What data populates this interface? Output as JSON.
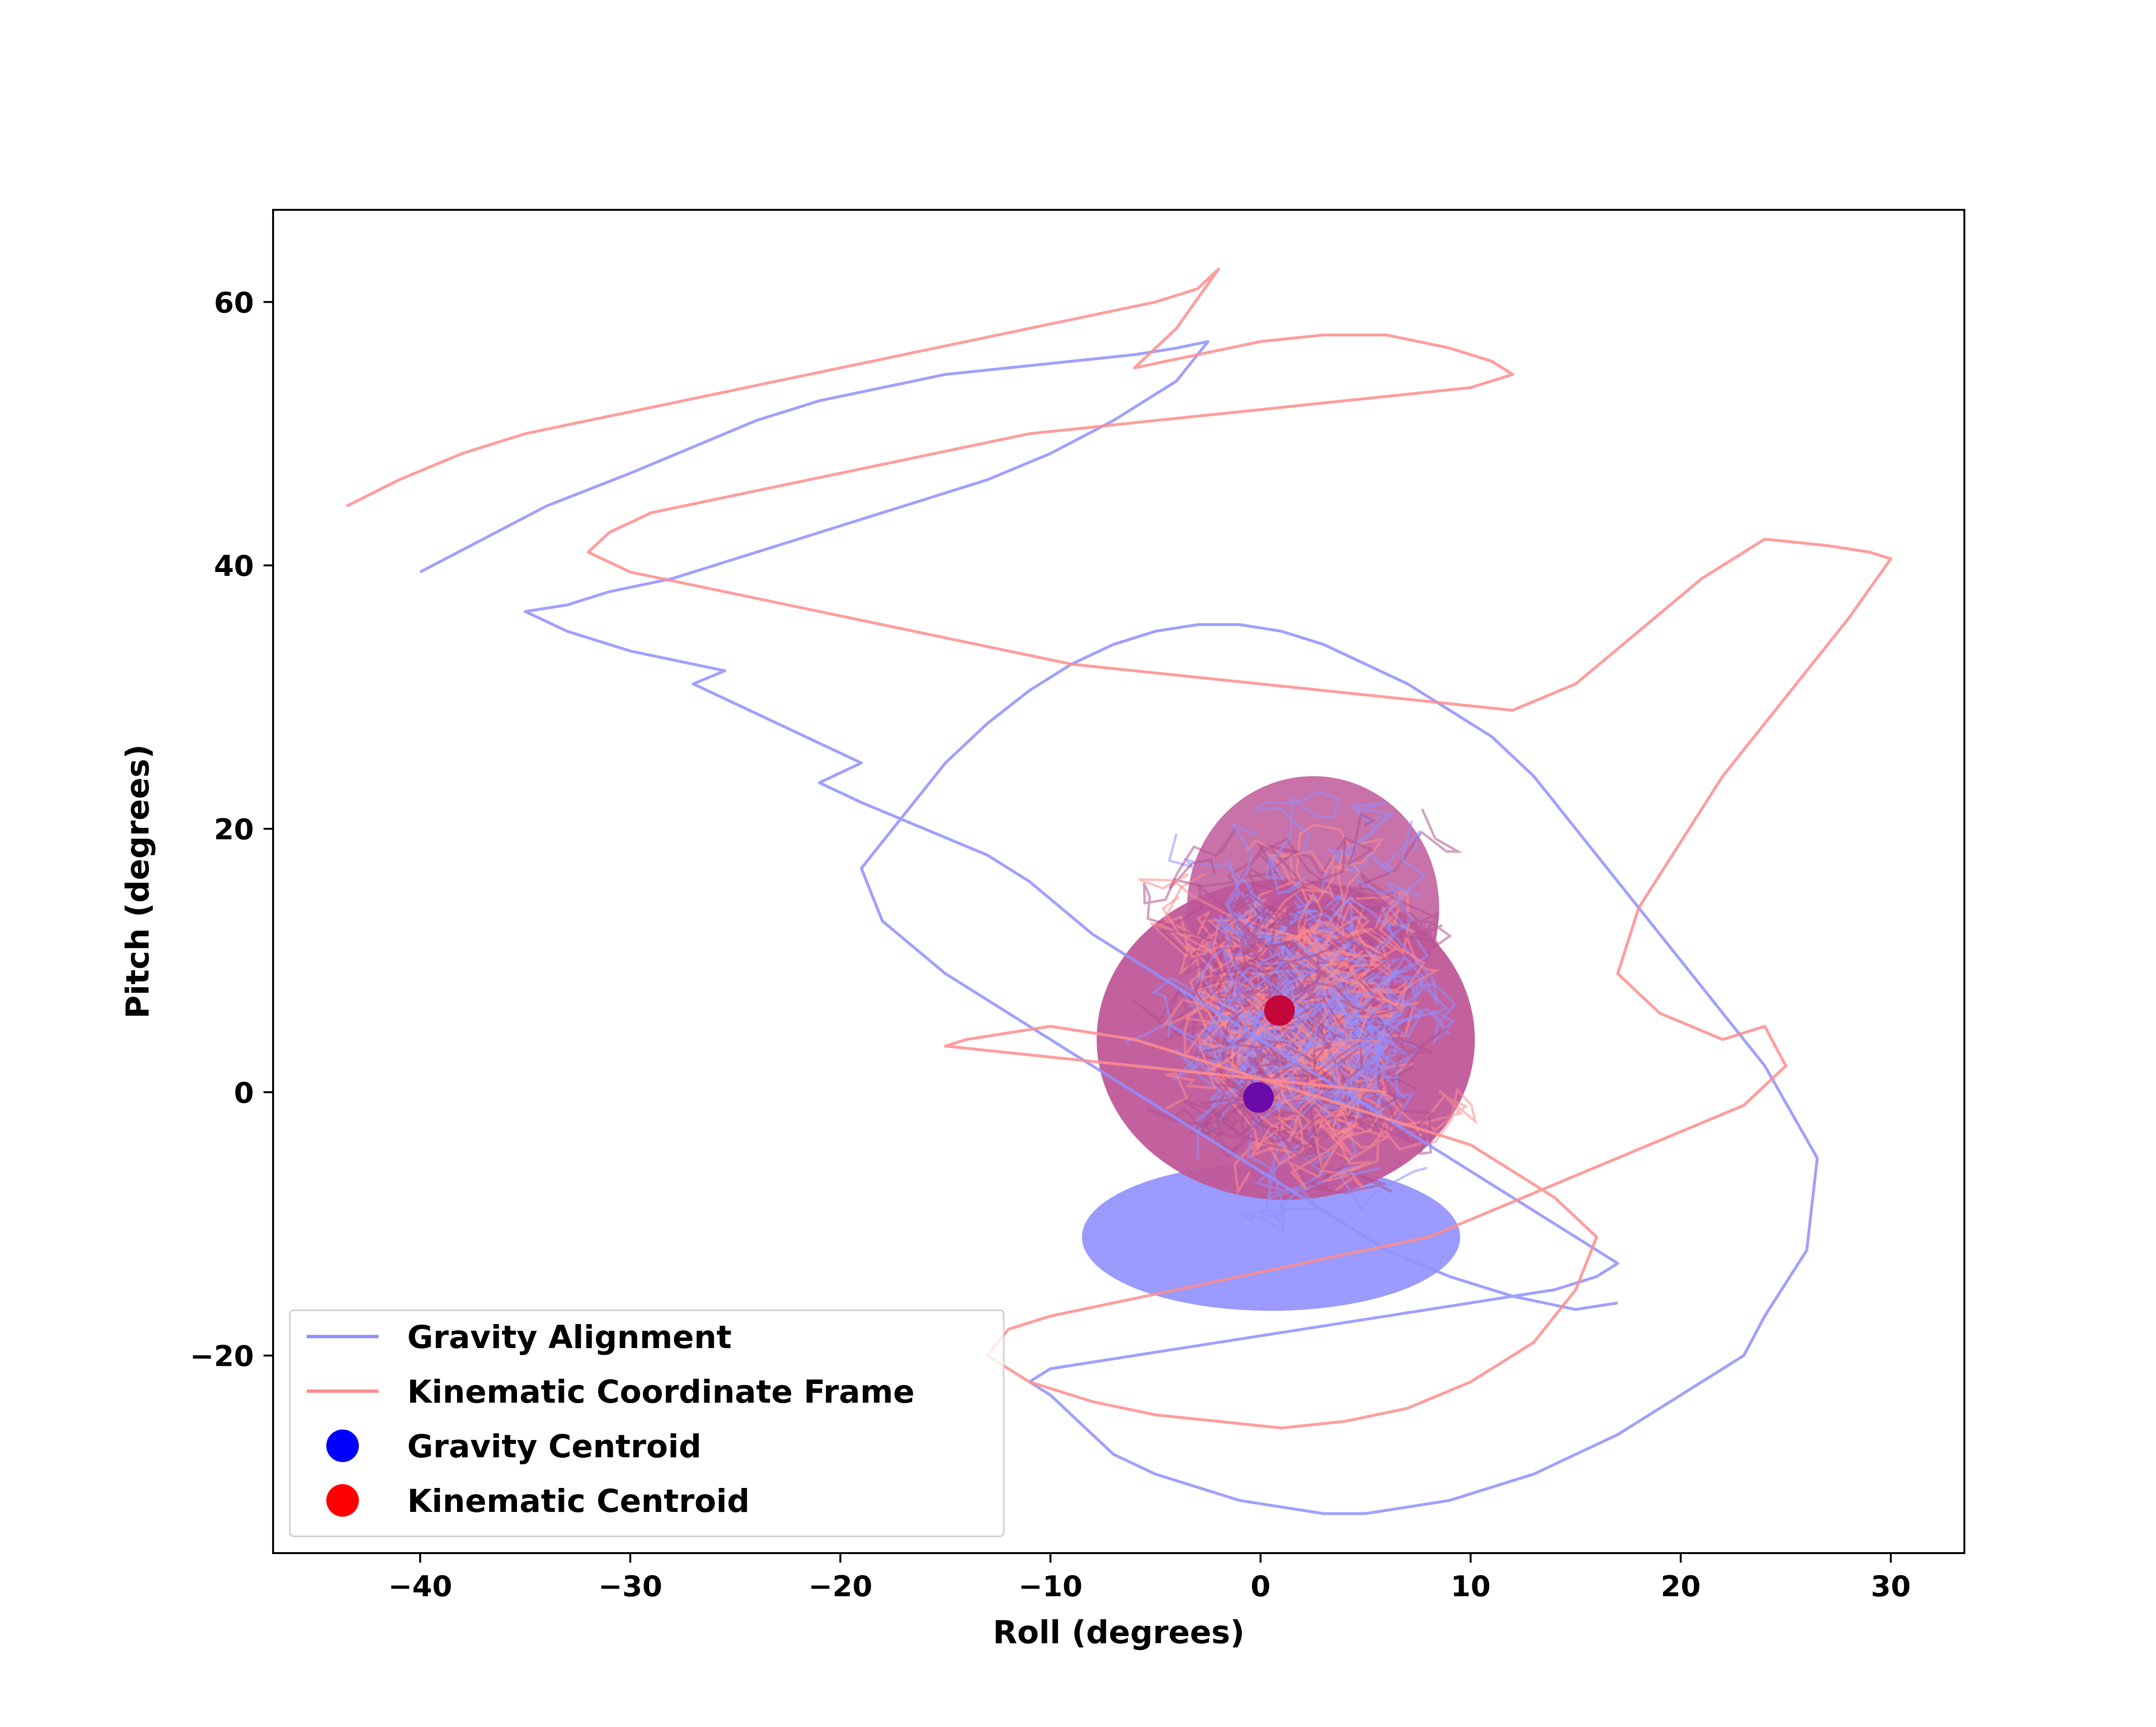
{
  "chart_data": {
    "type": "line",
    "title": "",
    "xlabel": "Roll (degrees)",
    "ylabel": "Pitch (degrees)",
    "xlim": [
      -47,
      33.5
    ],
    "ylim": [
      -35,
      67
    ],
    "xticks": [
      -40,
      -30,
      -20,
      -10,
      0,
      10,
      20,
      30
    ],
    "yticks": [
      -20,
      0,
      20,
      40,
      60
    ],
    "xtick_labels": [
      "−40",
      "−30",
      "−20",
      "−10",
      "0",
      "10",
      "20",
      "30"
    ],
    "ytick_labels": [
      "−20",
      "0",
      "20",
      "40",
      "60"
    ],
    "grid": false,
    "legend_position": "lower-left",
    "series": [
      {
        "name": "Gravity Alignment",
        "kind": "line",
        "color": "#8f8fff",
        "opacity": 0.85,
        "x": [
          -40,
          -37,
          -34,
          -30,
          -27,
          -24,
          -21,
          -18,
          -15,
          -12,
          -9,
          -6,
          -4,
          -2.5,
          -4,
          -7,
          -10,
          -13,
          -16,
          -19,
          -22,
          -25,
          -28,
          -31,
          -33,
          -35,
          -33,
          -30,
          -27,
          -25.5,
          -27,
          -25,
          -23,
          -21,
          -19,
          -21,
          -19,
          -16,
          -13,
          -11,
          -9.5,
          -8,
          -6,
          -4,
          -2,
          0,
          2,
          4,
          6,
          8,
          10,
          12,
          14,
          16,
          17,
          16,
          14,
          12,
          10,
          8,
          6,
          4,
          2,
          0,
          -2,
          -4,
          -6,
          -8,
          -10,
          -11,
          -10,
          -9,
          -8,
          -7,
          -5,
          -3,
          -1,
          1,
          3,
          5,
          7,
          9,
          11,
          13,
          15,
          17,
          19,
          21,
          23,
          24,
          26,
          26.5,
          24,
          21,
          18,
          15,
          13,
          11,
          9,
          7,
          5,
          3,
          1,
          -1,
          -3,
          -5,
          -7,
          -9,
          -11,
          -13,
          -15,
          -17,
          -19,
          -18,
          -15,
          -12,
          -9,
          -6,
          -3,
          0,
          3,
          6,
          9,
          12,
          15,
          17
        ],
        "y": [
          39.5,
          42,
          44.5,
          47,
          49,
          51,
          52.5,
          53.5,
          54.5,
          55,
          55.5,
          56,
          56.5,
          57,
          54,
          51,
          48.5,
          46.5,
          45,
          43.5,
          42,
          40.5,
          39,
          38,
          37,
          36.5,
          35,
          33.5,
          32.5,
          32,
          31,
          29.5,
          28,
          26.5,
          25,
          23.5,
          22,
          20,
          18,
          16,
          14,
          12,
          10,
          8,
          6,
          4,
          2,
          0,
          -2,
          -4,
          -6,
          -8,
          -10,
          -12,
          -13,
          -14,
          -15,
          -15.5,
          -16,
          -16.5,
          -17,
          -17.5,
          -18,
          -18.5,
          -19,
          -19.5,
          -20,
          -20.5,
          -21,
          -22,
          -23,
          -24.5,
          -26,
          -27.5,
          -29,
          -30,
          -31,
          -31.5,
          -32,
          -32,
          -31.5,
          -31,
          -30,
          -29,
          -27.5,
          -26,
          -24,
          -22,
          -20,
          -17,
          -12,
          -5,
          2,
          8,
          14,
          20,
          24,
          27,
          29,
          31,
          32.5,
          34,
          35,
          35.5,
          35.5,
          35,
          34,
          32.5,
          30.5,
          28,
          25,
          21,
          17,
          13,
          9,
          6,
          3,
          0,
          -3,
          -6,
          -9,
          -12,
          -14,
          -15.5,
          -16.5,
          -16
        ]
      },
      {
        "name": "Kinematic Coordinate Frame",
        "kind": "line",
        "color": "#ff8c8c",
        "opacity": 0.85,
        "x": [
          -43.5,
          -41,
          -38,
          -35,
          -32,
          -29,
          -26,
          -23,
          -20,
          -17,
          -14,
          -11,
          -8,
          -5,
          -3,
          -2,
          -4,
          -6,
          -3,
          0,
          3,
          6,
          9,
          11,
          12,
          10,
          7,
          4,
          1,
          -2,
          -5,
          -8,
          -11,
          -14,
          -17,
          -20,
          -23,
          -26,
          -29,
          -31,
          -32,
          -30,
          -27,
          -24,
          -21,
          -18,
          -15,
          -12,
          -9,
          -6,
          -3,
          0,
          3,
          6,
          9,
          12,
          15,
          18,
          21,
          24,
          27,
          29,
          30,
          28,
          25,
          22,
          20,
          18,
          17,
          19,
          22,
          24,
          25,
          23,
          20,
          17,
          14,
          11,
          8,
          5,
          2,
          -1,
          -4,
          -7,
          -10,
          -12,
          -13,
          -11,
          -8,
          -5,
          -2,
          1,
          4,
          7,
          10,
          13,
          15,
          16,
          14,
          12,
          10,
          8,
          6,
          4,
          2,
          0,
          -2,
          -4,
          -6,
          -8,
          -10,
          -12,
          -14,
          -15,
          -12,
          -9,
          -6,
          -3,
          0,
          3,
          6
        ],
        "y": [
          44.5,
          46.5,
          48.5,
          50,
          51,
          52,
          53,
          54,
          55,
          56,
          57,
          58,
          59,
          60,
          61,
          62.5,
          58,
          55,
          56,
          57,
          57.5,
          57.5,
          56.5,
          55.5,
          54.5,
          53.5,
          53,
          52.5,
          52,
          51.5,
          51,
          50.5,
          50,
          49,
          48,
          47,
          46,
          45,
          44,
          42.5,
          41,
          39.5,
          38.5,
          37.5,
          36.5,
          35.5,
          34.5,
          33.5,
          32.5,
          32,
          31.5,
          31,
          30.5,
          30,
          29.5,
          29,
          31,
          35,
          39,
          42,
          41.5,
          41,
          40.5,
          36,
          30,
          24,
          19,
          14,
          9,
          6,
          4,
          5,
          2,
          -1,
          -3,
          -5,
          -7,
          -9,
          -11,
          -12,
          -13,
          -14,
          -15,
          -16,
          -17,
          -18,
          -20,
          -22,
          -23.5,
          -24.5,
          -25,
          -25.5,
          -25,
          -24,
          -22,
          -19,
          -15,
          -11,
          -8,
          -6,
          -4,
          -3,
          -2,
          -1,
          0,
          1,
          2,
          3,
          4,
          4.5,
          5,
          4.5,
          4,
          3.5,
          3,
          2.5,
          2,
          1.5,
          1,
          0.5,
          0
        ]
      },
      {
        "name": "Gravity Centroid",
        "kind": "point",
        "color": "#6a0aa8",
        "x": [
          -0.1
        ],
        "y": [
          -0.4
        ]
      },
      {
        "name": "Kinematic Centroid",
        "kind": "point",
        "color": "#c4063a",
        "x": [
          0.9
        ],
        "y": [
          6.2
        ]
      }
    ],
    "legend_entries": [
      {
        "label": "Gravity Alignment",
        "kind": "line",
        "color": "#8f8fff"
      },
      {
        "label": "Kinematic Coordinate Frame",
        "kind": "line",
        "color": "#ff8c8c"
      },
      {
        "label": "Gravity Centroid",
        "kind": "dot",
        "color": "#0000ff"
      },
      {
        "label": "Kinematic Centroid",
        "kind": "dot",
        "color": "#ff0000"
      }
    ]
  }
}
